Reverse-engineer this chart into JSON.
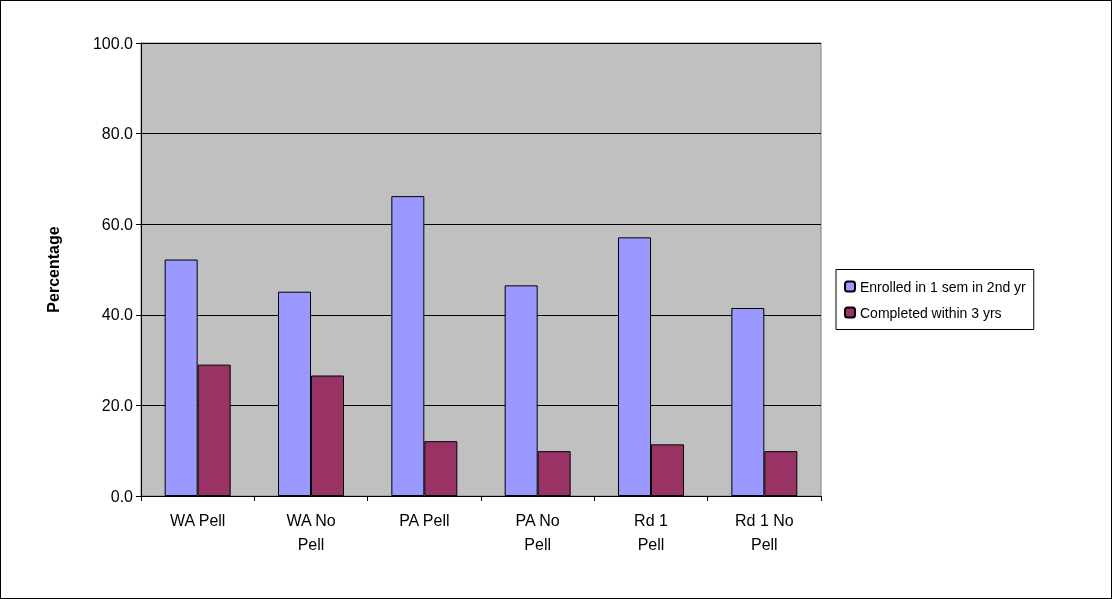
{
  "chart_data": {
    "type": "bar",
    "ylabel": "Percentage",
    "categories": [
      "WA Pell",
      "WA No Pell",
      "PA Pell",
      "PA No Pell",
      "Rd 1 Pell",
      "Rd 1 No Pell"
    ],
    "series": [
      {
        "name": "Enrolled in 1 sem in 2nd yr",
        "color": "#9999ff",
        "values": [
          52.2,
          45.1,
          66.2,
          46.5,
          57.1,
          41.5
        ]
      },
      {
        "name": "Completed within 3 yrs",
        "color": "#993366",
        "values": [
          29.0,
          26.6,
          12.1,
          9.9,
          11.4,
          9.9
        ]
      }
    ],
    "ylim": [
      0,
      100
    ],
    "yticks": [
      {
        "value": 0,
        "label": "0.0"
      },
      {
        "value": 20,
        "label": "20.0"
      },
      {
        "value": 40,
        "label": "40.0"
      },
      {
        "value": 60,
        "label": "60.0"
      },
      {
        "value": 80,
        "label": "80.0"
      },
      {
        "value": 100,
        "label": "100.0"
      }
    ],
    "grid": "y",
    "legend": "right"
  }
}
